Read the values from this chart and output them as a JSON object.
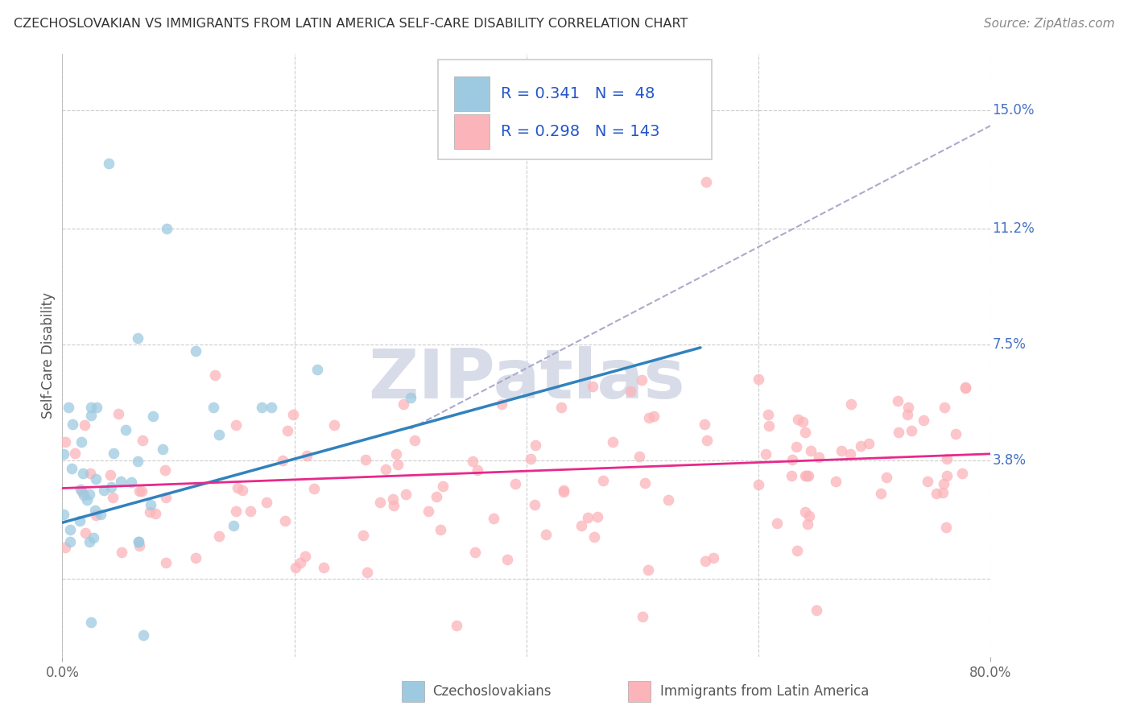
{
  "title": "CZECHOSLOVAKIAN VS IMMIGRANTS FROM LATIN AMERICA SELF-CARE DISABILITY CORRELATION CHART",
  "source": "Source: ZipAtlas.com",
  "ylabel": "Self-Care Disability",
  "xlim": [
    0,
    0.8
  ],
  "ylim": [
    -0.025,
    0.168
  ],
  "blue_color": "#9ecae1",
  "blue_line_color": "#3182bd",
  "pink_color": "#fbb4b9",
  "pink_line_color": "#e7298a",
  "dashed_line_color": "#aaaacc",
  "watermark_color": "#d8dce8",
  "background_color": "#ffffff",
  "grid_color": "#cccccc",
  "label1": "Czechoslovakians",
  "label2": "Immigrants from Latin America",
  "blue_R": 0.341,
  "blue_N": 48,
  "pink_R": 0.298,
  "pink_N": 143,
  "right_labels": [
    "3.8%",
    "7.5%",
    "11.2%",
    "15.0%"
  ],
  "right_yticks": [
    0.038,
    0.075,
    0.112,
    0.15
  ],
  "grid_yticks": [
    0.0,
    0.038,
    0.075,
    0.112,
    0.15
  ],
  "grid_xticks": [
    0.0,
    0.2,
    0.4,
    0.6,
    0.8
  ],
  "blue_line_x": [
    0.0,
    0.55
  ],
  "blue_line_y": [
    0.018,
    0.074
  ],
  "dash_line_x": [
    0.3,
    0.8
  ],
  "dash_line_y": [
    0.048,
    0.145
  ],
  "pink_line_x": [
    0.0,
    0.8
  ],
  "pink_line_y": [
    0.029,
    0.04
  ]
}
